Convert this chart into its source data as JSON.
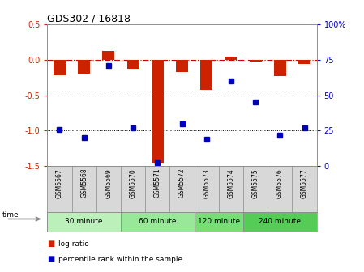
{
  "title": "GDS302 / 16818",
  "samples": [
    "GSM5567",
    "GSM5568",
    "GSM5569",
    "GSM5570",
    "GSM5571",
    "GSM5572",
    "GSM5573",
    "GSM5574",
    "GSM5575",
    "GSM5576",
    "GSM5577"
  ],
  "log_ratio": [
    -0.22,
    -0.2,
    0.12,
    -0.13,
    -1.45,
    -0.17,
    -0.42,
    0.04,
    -0.02,
    -0.23,
    -0.06
  ],
  "percentile": [
    26,
    20,
    71,
    27,
    2,
    30,
    19,
    60,
    45,
    22,
    27
  ],
  "groups": [
    {
      "label": "30 minute",
      "indices": [
        0,
        1,
        2
      ],
      "color": "#bbf0bb"
    },
    {
      "label": "60 minute",
      "indices": [
        3,
        4,
        5
      ],
      "color": "#99e899"
    },
    {
      "label": "120 minute",
      "indices": [
        6,
        7
      ],
      "color": "#77dd77"
    },
    {
      "label": "240 minute",
      "indices": [
        8,
        9,
        10
      ],
      "color": "#55cc55"
    }
  ],
  "ylim_left": [
    -1.5,
    0.5
  ],
  "ylim_right": [
    0,
    100
  ],
  "left_ticks": [
    -1.5,
    -1.0,
    -0.5,
    0.0,
    0.5
  ],
  "right_ticks": [
    0,
    25,
    50,
    75,
    100
  ],
  "bar_color": "#cc2200",
  "dot_color": "#0000bb",
  "hline_color": "#cc0000",
  "dotted_lines": [
    -0.5,
    -1.0
  ],
  "background_color": "#ffffff",
  "tick_color_left": "#cc2200",
  "tick_color_right": "#0000bb",
  "sample_bg": "#d8d8d8",
  "bar_width": 0.5
}
